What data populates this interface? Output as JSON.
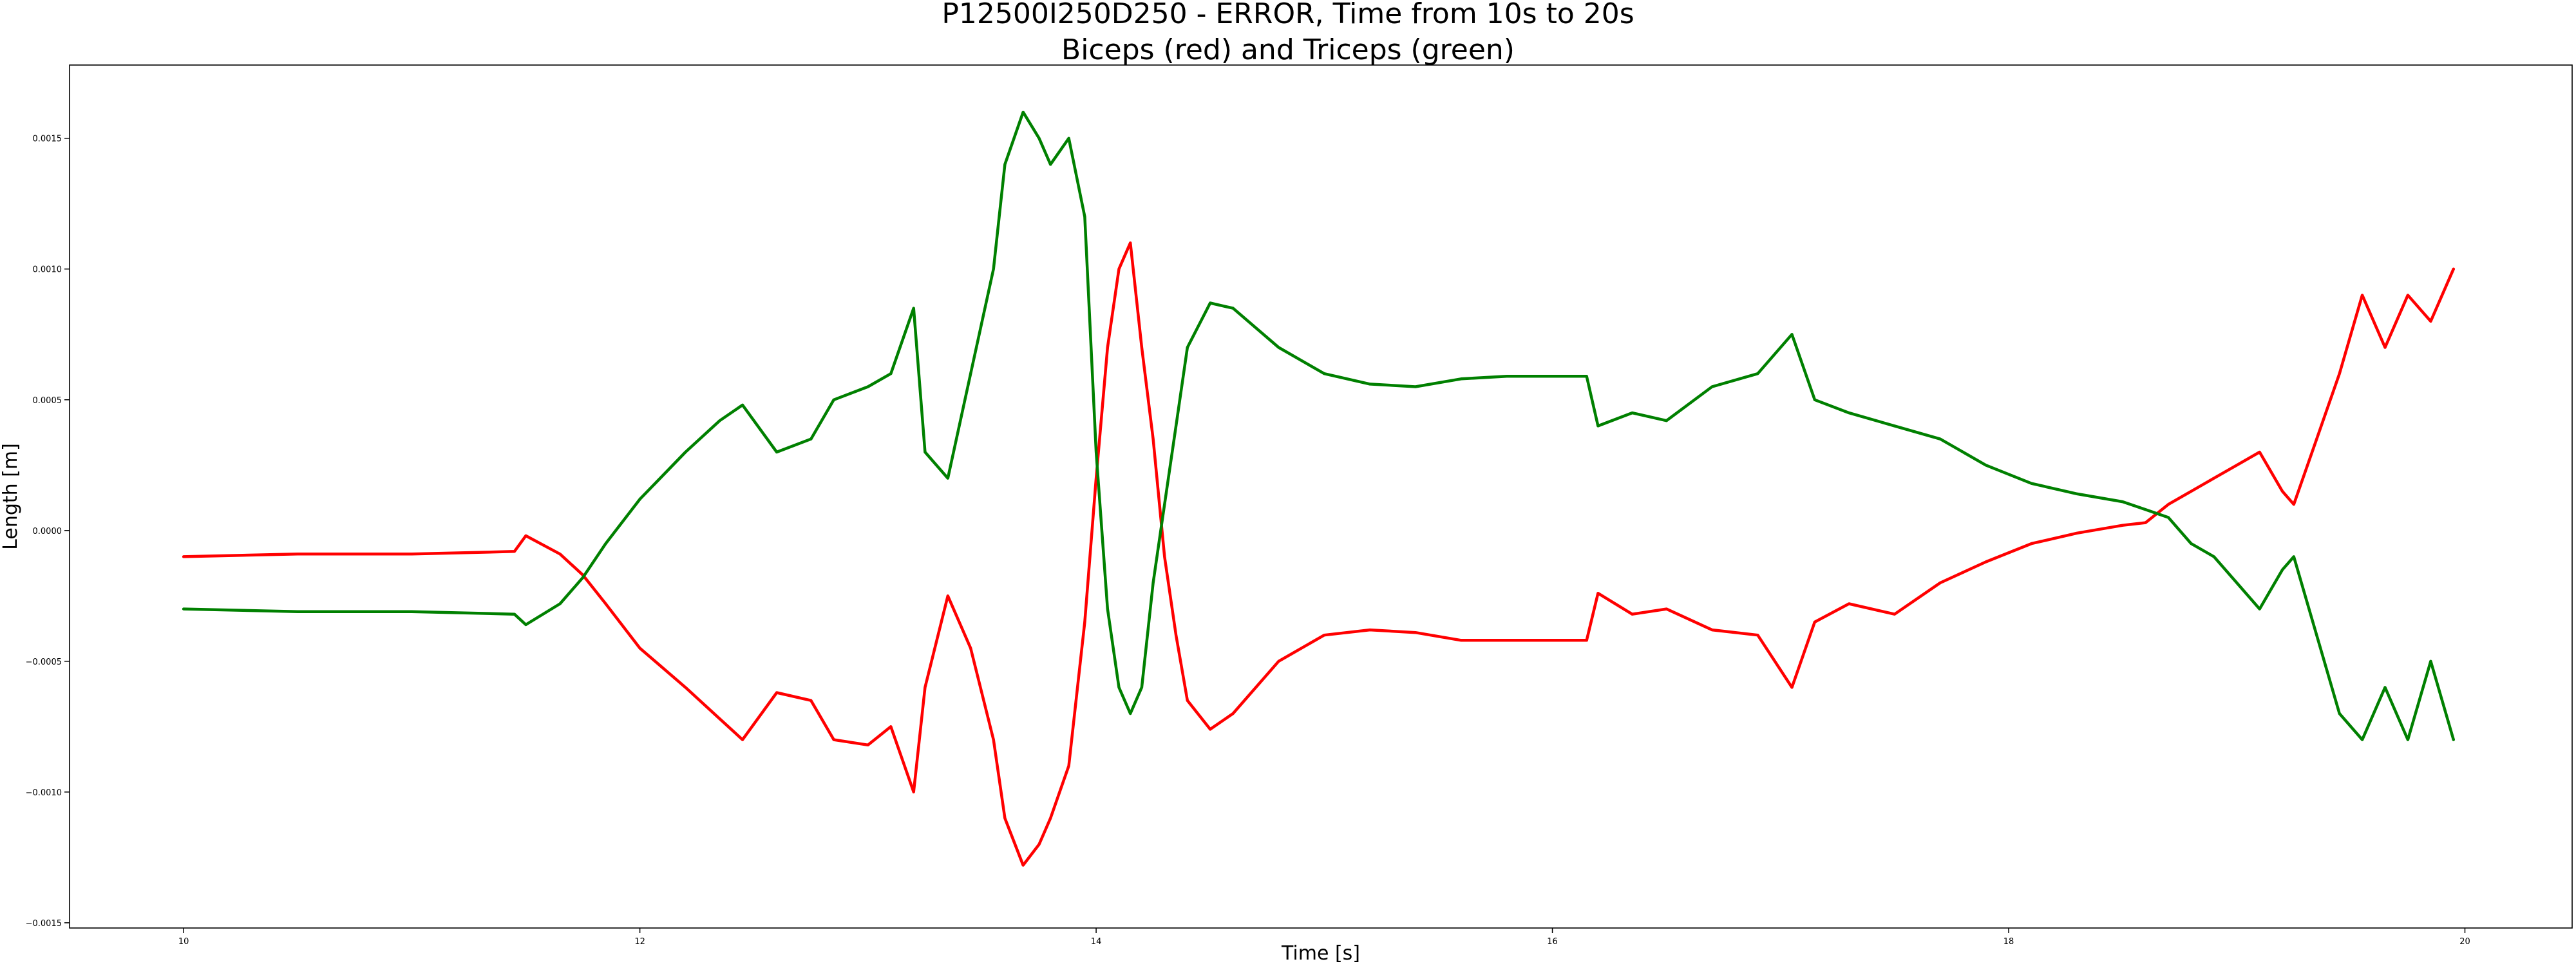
{
  "chart_data": {
    "type": "line",
    "title": "P12500I250D250 - ERROR, Time from 10s to 20s",
    "subtitle": "Biceps (red) and Triceps (green)",
    "xlabel": "Time [s]",
    "ylabel": "Length [m]",
    "xlim": [
      9.5,
      20.47
    ],
    "ylim": [
      -0.00152,
      0.00178
    ],
    "x_ticks": [
      10,
      12,
      14,
      16,
      18,
      20
    ],
    "x_tick_labels": [
      "10",
      "12",
      "14",
      "16",
      "18",
      "20"
    ],
    "y_ticks": [
      -0.0015,
      -0.001,
      -0.0005,
      0.0,
      0.0005,
      0.001,
      0.0015
    ],
    "y_tick_labels": [
      "−0.0015",
      "−0.0010",
      "−0.0005",
      "0.0000",
      "0.0005",
      "0.0010",
      "0.0015"
    ],
    "grid": false,
    "legend": "none",
    "series": [
      {
        "color": "#ff0000",
        "x": [
          10.0,
          10.5,
          11.0,
          11.45,
          11.5,
          11.65,
          11.75,
          11.85,
          12.0,
          12.2,
          12.35,
          12.45,
          12.6,
          12.75,
          12.85,
          13.0,
          13.1,
          13.2,
          13.25,
          13.35,
          13.45,
          13.55,
          13.6,
          13.68,
          13.75,
          13.8,
          13.88,
          13.95,
          14.0,
          14.05,
          14.1,
          14.15,
          14.2,
          14.25,
          14.3,
          14.35,
          14.4,
          14.5,
          14.6,
          14.8,
          15.0,
          15.2,
          15.4,
          15.6,
          15.8,
          16.0,
          16.15,
          16.2,
          16.35,
          16.5,
          16.7,
          16.9,
          17.05,
          17.15,
          17.3,
          17.5,
          17.7,
          17.9,
          18.1,
          18.3,
          18.5,
          18.6,
          18.7,
          18.8,
          18.9,
          19.0,
          19.1,
          19.2,
          19.25,
          19.35,
          19.45,
          19.55,
          19.65,
          19.75,
          19.85,
          19.95
        ],
        "values": [
          -0.0001,
          -9e-05,
          -9e-05,
          -8e-05,
          -2e-05,
          -9e-05,
          -0.00017,
          -0.00028,
          -0.00045,
          -0.0006,
          -0.00072,
          -0.0008,
          -0.00062,
          -0.00065,
          -0.0008,
          -0.00082,
          -0.00075,
          -0.001,
          -0.0006,
          -0.00025,
          -0.00045,
          -0.0008,
          -0.0011,
          -0.00128,
          -0.0012,
          -0.0011,
          -0.0009,
          -0.00035,
          0.0002,
          0.0007,
          0.001,
          0.0011,
          0.0007,
          0.00035,
          -0.0001,
          -0.0004,
          -0.00065,
          -0.00076,
          -0.0007,
          -0.0005,
          -0.0004,
          -0.00038,
          -0.00039,
          -0.00042,
          -0.00042,
          -0.00042,
          -0.00042,
          -0.00024,
          -0.00032,
          -0.0003,
          -0.00038,
          -0.0004,
          -0.0006,
          -0.00035,
          -0.00028,
          -0.00032,
          -0.0002,
          -0.00012,
          -5e-05,
          -1e-05,
          2e-05,
          3e-05,
          0.0001,
          0.00015,
          0.0002,
          0.00025,
          0.0003,
          0.00015,
          0.0001,
          0.00035,
          0.0006,
          0.0009,
          0.0007,
          0.0009,
          0.0008,
          0.001
        ]
      },
      {
        "color": "#008000",
        "x": [
          10.0,
          10.5,
          11.0,
          11.45,
          11.5,
          11.65,
          11.75,
          11.85,
          12.0,
          12.2,
          12.35,
          12.45,
          12.6,
          12.75,
          12.85,
          13.0,
          13.1,
          13.2,
          13.25,
          13.35,
          13.45,
          13.55,
          13.6,
          13.68,
          13.75,
          13.8,
          13.88,
          13.95,
          14.0,
          14.05,
          14.1,
          14.15,
          14.2,
          14.25,
          14.3,
          14.35,
          14.4,
          14.5,
          14.6,
          14.8,
          15.0,
          15.2,
          15.4,
          15.6,
          15.8,
          16.0,
          16.15,
          16.2,
          16.35,
          16.5,
          16.7,
          16.9,
          17.05,
          17.15,
          17.3,
          17.5,
          17.7,
          17.9,
          18.1,
          18.3,
          18.5,
          18.6,
          18.7,
          18.8,
          18.9,
          19.0,
          19.1,
          19.2,
          19.25,
          19.35,
          19.45,
          19.55,
          19.65,
          19.75,
          19.85,
          19.95
        ],
        "values": [
          -0.0003,
          -0.00031,
          -0.00031,
          -0.00032,
          -0.00036,
          -0.00028,
          -0.00018,
          -5e-05,
          0.00012,
          0.0003,
          0.00042,
          0.00048,
          0.0003,
          0.00035,
          0.0005,
          0.00055,
          0.0006,
          0.00085,
          0.0003,
          0.0002,
          0.0006,
          0.001,
          0.0014,
          0.0016,
          0.0015,
          0.0014,
          0.0015,
          0.0012,
          0.0003,
          -0.0003,
          -0.0006,
          -0.0007,
          -0.0006,
          -0.0002,
          0.0001,
          0.0004,
          0.0007,
          0.00087,
          0.00085,
          0.0007,
          0.0006,
          0.00056,
          0.00055,
          0.00058,
          0.00059,
          0.00059,
          0.00059,
          0.0004,
          0.00045,
          0.00042,
          0.00055,
          0.0006,
          0.00075,
          0.0005,
          0.00045,
          0.0004,
          0.00035,
          0.00025,
          0.00018,
          0.00014,
          0.00011,
          8e-05,
          5e-05,
          -5e-05,
          -0.0001,
          -0.0002,
          -0.0003,
          -0.00015,
          -0.0001,
          -0.0004,
          -0.0007,
          -0.0008,
          -0.0006,
          -0.0008,
          -0.0005,
          -0.0008
        ]
      }
    ]
  }
}
